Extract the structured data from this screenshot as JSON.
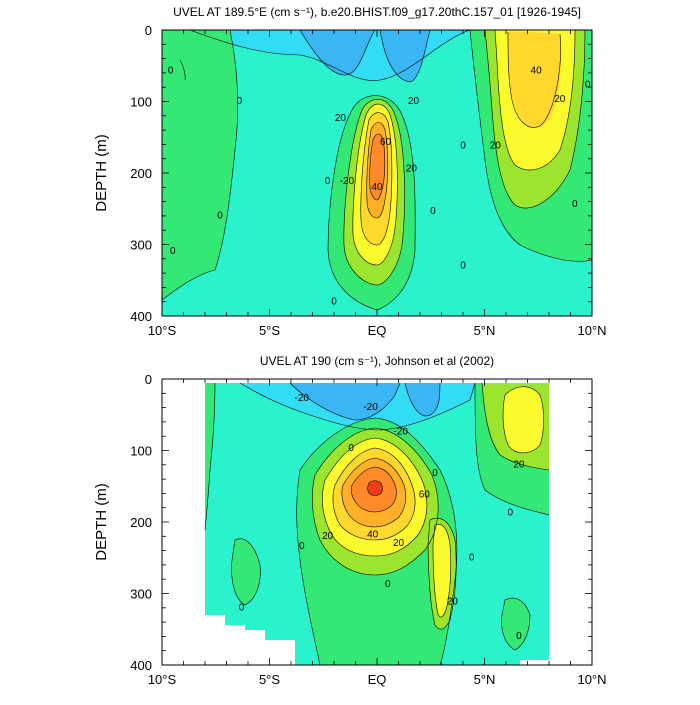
{
  "chart_data": [
    {
      "type": "contour",
      "title": "UVEL AT 189.5°E (cm s⁻¹), b.e20.BHIST.f09_g17.20thC.157_01 [1926-1945]",
      "ylabel": "DEPTH (m)",
      "xlabel": "",
      "x_ticks": [
        "10°S",
        "5°S",
        "EQ",
        "5°N",
        "10°N"
      ],
      "x_tick_values": [
        -10,
        -5,
        0,
        5,
        10
      ],
      "y_ticks": [
        0,
        100,
        200,
        300,
        400
      ],
      "xlim": [
        -10,
        10
      ],
      "ylim": [
        0,
        400
      ],
      "y_inverted": true,
      "contour_interval": 10,
      "contour_labels": [
        {
          "text": "0",
          "lat": -9.6,
          "depth": 55
        },
        {
          "text": "0",
          "lat": -6.4,
          "depth": 98
        },
        {
          "text": "0",
          "lat": -7.3,
          "depth": 258
        },
        {
          "text": "0",
          "lat": -9.5,
          "depth": 308
        },
        {
          "text": "0",
          "lat": -2.3,
          "depth": 210
        },
        {
          "text": "0",
          "lat": -2.0,
          "depth": 378
        },
        {
          "text": "0",
          "lat": 2.6,
          "depth": 252
        },
        {
          "text": "0",
          "lat": 4.0,
          "depth": 160
        },
        {
          "text": "0",
          "lat": 4.0,
          "depth": 328
        },
        {
          "text": "0",
          "lat": 9.2,
          "depth": 242
        },
        {
          "text": "0",
          "lat": 9.8,
          "depth": 75
        },
        {
          "text": "20",
          "lat": -1.7,
          "depth": 122
        },
        {
          "text": "20",
          "lat": 1.7,
          "depth": 98
        },
        {
          "text": "-20",
          "lat": -1.4,
          "depth": 210
        },
        {
          "text": "20",
          "lat": 1.6,
          "depth": 192
        },
        {
          "text": "40",
          "lat": 0.0,
          "depth": 218
        },
        {
          "text": "60",
          "lat": 0.4,
          "depth": 155
        },
        {
          "text": "40",
          "lat": 7.4,
          "depth": 55
        },
        {
          "text": "20",
          "lat": 8.5,
          "depth": 95
        },
        {
          "text": "20",
          "lat": 5.5,
          "depth": 160
        }
      ]
    },
    {
      "type": "contour",
      "title": "UVEL AT 190 (cm s⁻¹), Johnson et al (2002)",
      "ylabel": "DEPTH (m)",
      "xlabel": "",
      "x_ticks": [
        "10°S",
        "5°S",
        "EQ",
        "5°N",
        "10°N"
      ],
      "x_tick_values": [
        -10,
        -5,
        0,
        5,
        10
      ],
      "y_ticks": [
        0,
        100,
        200,
        300,
        400
      ],
      "xlim": [
        -10,
        10
      ],
      "ylim": [
        0,
        400
      ],
      "y_inverted": true,
      "contour_interval": 10,
      "data_lat_range": [
        -8,
        8
      ],
      "contour_labels": [
        {
          "text": "-20",
          "lat": -3.5,
          "depth": 25
        },
        {
          "text": "-20",
          "lat": -0.3,
          "depth": 38
        },
        {
          "text": "-20",
          "lat": 1.1,
          "depth": 72
        },
        {
          "text": "0",
          "lat": -1.2,
          "depth": 95
        },
        {
          "text": "0",
          "lat": 2.7,
          "depth": 130
        },
        {
          "text": "20",
          "lat": 6.6,
          "depth": 118
        },
        {
          "text": "0",
          "lat": 6.2,
          "depth": 185
        },
        {
          "text": "0",
          "lat": -3.5,
          "depth": 232
        },
        {
          "text": "0",
          "lat": 4.4,
          "depth": 248
        },
        {
          "text": "0",
          "lat": 0.5,
          "depth": 285
        },
        {
          "text": "20",
          "lat": -2.3,
          "depth": 218
        },
        {
          "text": "20",
          "lat": 1.0,
          "depth": 228
        },
        {
          "text": "40",
          "lat": -0.2,
          "depth": 216
        },
        {
          "text": "60",
          "lat": 2.2,
          "depth": 160
        },
        {
          "text": "20",
          "lat": 3.5,
          "depth": 310
        },
        {
          "text": "0",
          "lat": -6.3,
          "depth": 318
        },
        {
          "text": "0",
          "lat": 6.6,
          "depth": 358
        }
      ]
    }
  ],
  "colors": {
    "lt_-20": "#3bb6f5",
    "-20_-10": "#33dcf5",
    "-10_0": "#29f2cc",
    "0_10": "#33e875",
    "10_20": "#9be52f",
    "20_30": "#fafa2c",
    "30_40": "#ffd72d",
    "40_50": "#ffb028",
    "50_60": "#ff8a2a",
    "gt_60": "#f03c18"
  }
}
